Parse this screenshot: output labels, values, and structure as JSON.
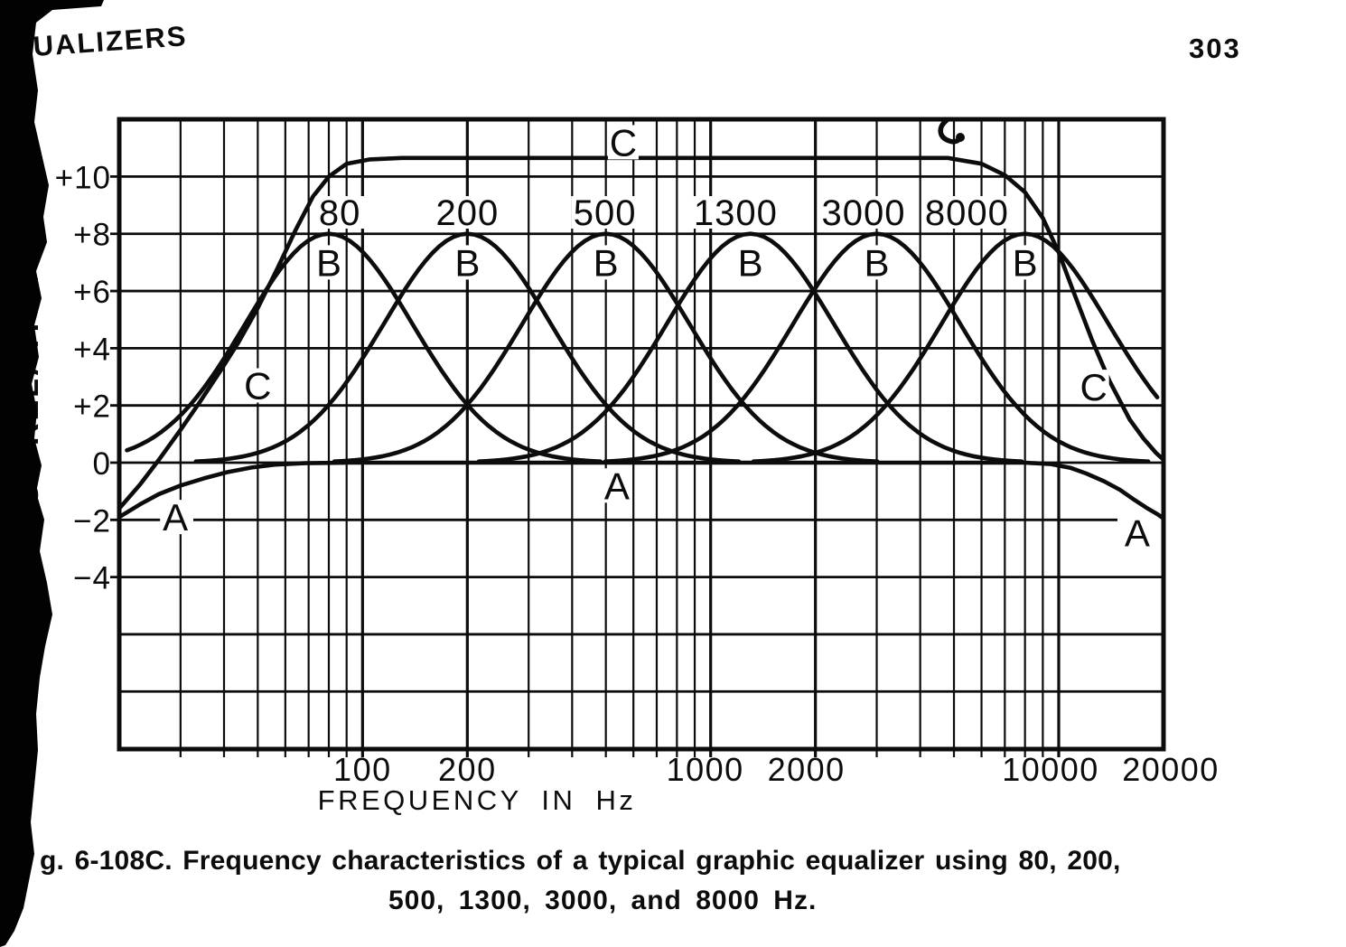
{
  "page": {
    "header_left": "UALIZERS",
    "page_number": "303",
    "caption_line1": "g. 6-108C. Frequency characteristics of a typical graphic equalizer using 80, 200,",
    "caption_line2": "500, 1300, 3000, and 8000 Hz.",
    "colors": {
      "ink": "#0c0c0c",
      "paper": "#ffffff",
      "scan_band": "#020202"
    }
  },
  "chart_data": {
    "type": "line",
    "title": "",
    "xlabel": "FREQUENCY IN Hz",
    "ylabel": "RESPONSE-RELATIVE dB",
    "x_scale": "log",
    "x_range_hz": [
      20,
      20000
    ],
    "y_range_db": [
      -10,
      12
    ],
    "y_grid_step_db": 2,
    "grid": true,
    "x_tick_labels": [
      {
        "label": "100",
        "f": 100
      },
      {
        "label": "200",
        "f": 200
      },
      {
        "label": "1000",
        "f": 1000
      },
      {
        "label": "2000",
        "f": 2000
      },
      {
        "label": "10000",
        "f": 10000
      },
      {
        "label": "20000",
        "f": 20000
      }
    ],
    "y_tick_labels": [
      {
        "label": "+10",
        "db": 10
      },
      {
        "label": "+8",
        "db": 8
      },
      {
        "label": "+6",
        "db": 6
      },
      {
        "label": "+4",
        "db": 4
      },
      {
        "label": "+2",
        "db": 2
      },
      {
        "label": "0",
        "db": 0
      },
      {
        "label": "−2",
        "db": -2
      },
      {
        "label": "−4",
        "db": -4
      }
    ],
    "eq_band_labels": [
      {
        "label": "80",
        "anchor_f": 86
      },
      {
        "label": "200",
        "anchor_f": 200
      },
      {
        "label": "500",
        "anchor_f": 497
      },
      {
        "label": "1300",
        "anchor_f": 1180
      },
      {
        "label": "3000",
        "anchor_f": 2750
      },
      {
        "label": "8000",
        "anchor_f": 5450
      }
    ],
    "series": {
      "A": {
        "name": "A",
        "points": [
          [
            20,
            -1.9
          ],
          [
            23,
            -1.45
          ],
          [
            26,
            -1.1
          ],
          [
            30,
            -0.8
          ],
          [
            35,
            -0.55
          ],
          [
            41,
            -0.33
          ],
          [
            48,
            -0.17
          ],
          [
            56,
            -0.07
          ],
          [
            68,
            -0.02
          ],
          [
            90,
            0
          ],
          [
            8000,
            0
          ],
          [
            9500,
            -0.05
          ],
          [
            10800,
            -0.18
          ],
          [
            12000,
            -0.38
          ],
          [
            13500,
            -0.65
          ],
          [
            15000,
            -0.95
          ],
          [
            16500,
            -1.3
          ],
          [
            18000,
            -1.6
          ],
          [
            19200,
            -1.8
          ],
          [
            20000,
            -1.95
          ]
        ]
      },
      "C": {
        "name": "C",
        "points": [
          [
            20,
            -1.6
          ],
          [
            23,
            -0.75
          ],
          [
            26,
            0.1
          ],
          [
            30,
            1.15
          ],
          [
            34,
            2.1
          ],
          [
            39,
            3.2
          ],
          [
            44,
            4.2
          ],
          [
            50,
            5.4
          ],
          [
            57,
            6.8
          ],
          [
            64,
            8.1
          ],
          [
            72,
            9.3
          ],
          [
            80,
            10.0
          ],
          [
            90,
            10.45
          ],
          [
            105,
            10.6
          ],
          [
            130,
            10.65
          ],
          [
            4800,
            10.65
          ],
          [
            6000,
            10.45
          ],
          [
            7000,
            10.05
          ],
          [
            8000,
            9.45
          ],
          [
            9000,
            8.55
          ],
          [
            10000,
            7.35
          ],
          [
            11000,
            6.0
          ],
          [
            12500,
            4.25
          ],
          [
            14000,
            2.85
          ],
          [
            16000,
            1.5
          ],
          [
            17500,
            0.85
          ],
          [
            19000,
            0.35
          ],
          [
            20000,
            0.1
          ]
        ]
      },
      "B": {
        "name": "B",
        "peak_db": 8,
        "bandwidth_sigma_decades": 0.24,
        "centers_hz": [
          80,
          200,
          500,
          1300,
          3000,
          8000
        ]
      }
    },
    "annotations": [
      {
        "text": "C",
        "f": 561,
        "db": 11.2
      },
      {
        "text": "C",
        "f": 50,
        "db": 2.7
      },
      {
        "text": "C",
        "f": 12600,
        "db": 2.65
      },
      {
        "text": "A",
        "f": 29,
        "db": -1.9
      },
      {
        "text": "A",
        "f": 538,
        "db": -0.8
      },
      {
        "text": "A",
        "f": 16800,
        "db": -2.45
      },
      {
        "text": "B",
        "f": 80,
        "db": 7.0
      },
      {
        "text": "B",
        "f": 200,
        "db": 7.0
      },
      {
        "text": "B",
        "f": 500,
        "db": 7.0
      },
      {
        "text": "B",
        "f": 1300,
        "db": 7.0
      },
      {
        "text": "B",
        "f": 3000,
        "db": 7.0
      },
      {
        "text": "B",
        "f": 8000,
        "db": 7.0
      }
    ]
  }
}
